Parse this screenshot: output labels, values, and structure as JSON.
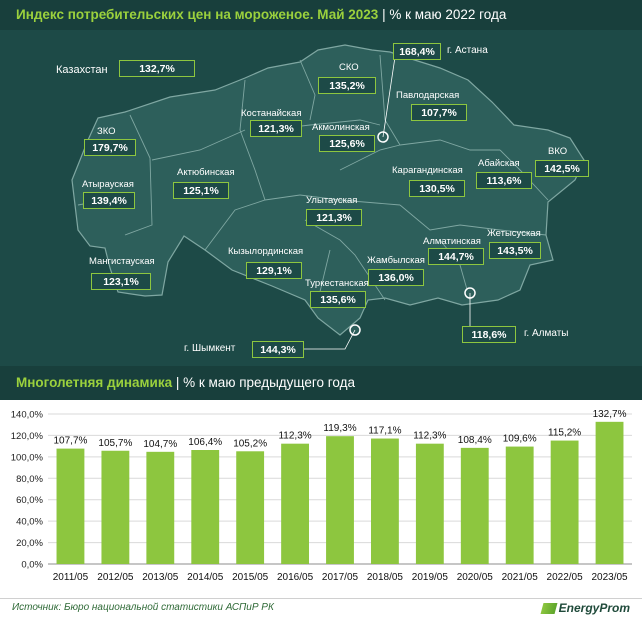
{
  "header": {
    "title": "Индекс потребительских цен на мороженое. Май 2023",
    "subtitle": "| % к маю 2022 года"
  },
  "country": {
    "name": "Казахстан",
    "value": "132,7%"
  },
  "regions": [
    {
      "name": "СКО",
      "value": "135,2%"
    },
    {
      "name": "Павлодарская",
      "value": "107,7%"
    },
    {
      "name": "Костанайская",
      "value": "121,3%"
    },
    {
      "name": "Акмолинская",
      "value": "125,6%"
    },
    {
      "name": "ЗКО",
      "value": "179,7%"
    },
    {
      "name": "Атырауская",
      "value": "139,4%"
    },
    {
      "name": "Актюбинская",
      "value": "125,1%"
    },
    {
      "name": "Карагандинская",
      "value": "130,5%"
    },
    {
      "name": "Абайская",
      "value": "113,6%"
    },
    {
      "name": "ВКО",
      "value": "142,5%"
    },
    {
      "name": "Улытауская",
      "value": "121,3%"
    },
    {
      "name": "Жетысуская",
      "value": "143,5%"
    },
    {
      "name": "Алматинская",
      "value": "144,7%"
    },
    {
      "name": "Мангистауская",
      "value": "123,1%"
    },
    {
      "name": "Кызылординская",
      "value": "129,1%"
    },
    {
      "name": "Жамбылская",
      "value": "136,0%"
    },
    {
      "name": "Туркестанская",
      "value": "135,6%"
    }
  ],
  "cities": [
    {
      "name": "г. Астана",
      "value": "168,4%"
    },
    {
      "name": "г. Алматы",
      "value": "118,6%"
    },
    {
      "name": "г. Шымкент",
      "value": "144,3%"
    }
  ],
  "chart_header": {
    "title": "Многолетняя динамика",
    "subtitle": "| % к маю предыдущего года"
  },
  "chart_data": {
    "type": "bar",
    "title": "Многолетняя динамика | % к маю предыдущего года",
    "categories": [
      "2011/05",
      "2012/05",
      "2013/05",
      "2014/05",
      "2015/05",
      "2016/05",
      "2017/05",
      "2018/05",
      "2019/05",
      "2020/05",
      "2021/05",
      "2022/05",
      "2023/05"
    ],
    "values": [
      107.7,
      105.7,
      104.7,
      106.4,
      105.2,
      112.3,
      119.3,
      117.1,
      112.3,
      108.4,
      109.6,
      115.2,
      132.7
    ],
    "value_labels": [
      "107,7%",
      "105,7%",
      "104,7%",
      "106,4%",
      "105,2%",
      "112,3%",
      "119,3%",
      "117,1%",
      "112,3%",
      "108,4%",
      "109,6%",
      "115,2%",
      "132,7%"
    ],
    "y_ticks": [
      "0,0%",
      "20,0%",
      "40,0%",
      "60,0%",
      "80,0%",
      "100,0%",
      "120,0%",
      "140,0%"
    ],
    "ylim": [
      0,
      140
    ],
    "grid": true,
    "bar_color": "#8dc63f",
    "xlabel": "",
    "ylabel": ""
  },
  "footer": {
    "source": "Источник: Бюро национальной статистики АСПиР РК",
    "brand": "EnergyProm"
  },
  "colors": {
    "panel": "#1d4a47",
    "band": "#183f3c",
    "accent": "#9bd13d",
    "map_fill": "#2d5f5b",
    "map_border": "#7fa7a2"
  }
}
